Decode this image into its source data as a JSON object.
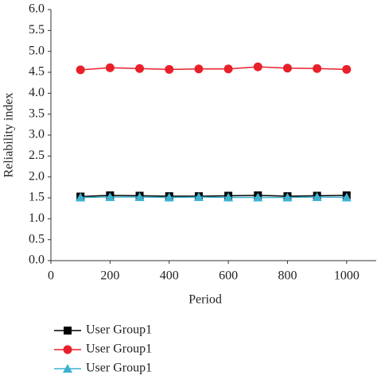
{
  "chart_data": {
    "type": "line",
    "x_label": "Period",
    "y_label": "Reliability index",
    "x": [
      100,
      200,
      300,
      400,
      500,
      600,
      700,
      800,
      900,
      1000
    ],
    "series": [
      {
        "name": "User Group1",
        "color": "#000000",
        "marker": "square",
        "values": [
          1.53,
          1.56,
          1.55,
          1.54,
          1.54,
          1.55,
          1.56,
          1.54,
          1.55,
          1.56
        ]
      },
      {
        "name": "User Group1",
        "color": "#e8202a",
        "marker": "circle",
        "values": [
          4.56,
          4.61,
          4.59,
          4.57,
          4.58,
          4.58,
          4.63,
          4.6,
          4.59,
          4.57
        ]
      },
      {
        "name": "User Group1",
        "color": "#3bb3d0",
        "marker": "triangle",
        "values": [
          1.51,
          1.52,
          1.52,
          1.51,
          1.52,
          1.51,
          1.51,
          1.51,
          1.52,
          1.51
        ]
      }
    ],
    "xlim": [
      0,
      1100
    ],
    "xticks": [
      0,
      200,
      400,
      600,
      800,
      1000
    ],
    "ylim": [
      0,
      6
    ],
    "yticks": [
      {
        "value": 0,
        "label": "0.0"
      },
      {
        "value": 0.5,
        "label": "0.5"
      },
      {
        "value": 1,
        "label": "1.0"
      },
      {
        "value": 1.5,
        "label": "1.5"
      },
      {
        "value": 2,
        "label": "2.0"
      },
      {
        "value": 2.5,
        "label": "2.5"
      },
      {
        "value": 3,
        "label": "3.0"
      },
      {
        "value": 3.5,
        "label": "3.5"
      },
      {
        "value": 4,
        "label": "4.0"
      },
      {
        "value": 4.5,
        "label": "4.5"
      },
      {
        "value": 5,
        "label": "5.0"
      },
      {
        "value": 5.5,
        "label": "5.5"
      },
      {
        "value": 6,
        "label": "6.0"
      }
    ],
    "grid": false,
    "legend": "bottom-left"
  }
}
